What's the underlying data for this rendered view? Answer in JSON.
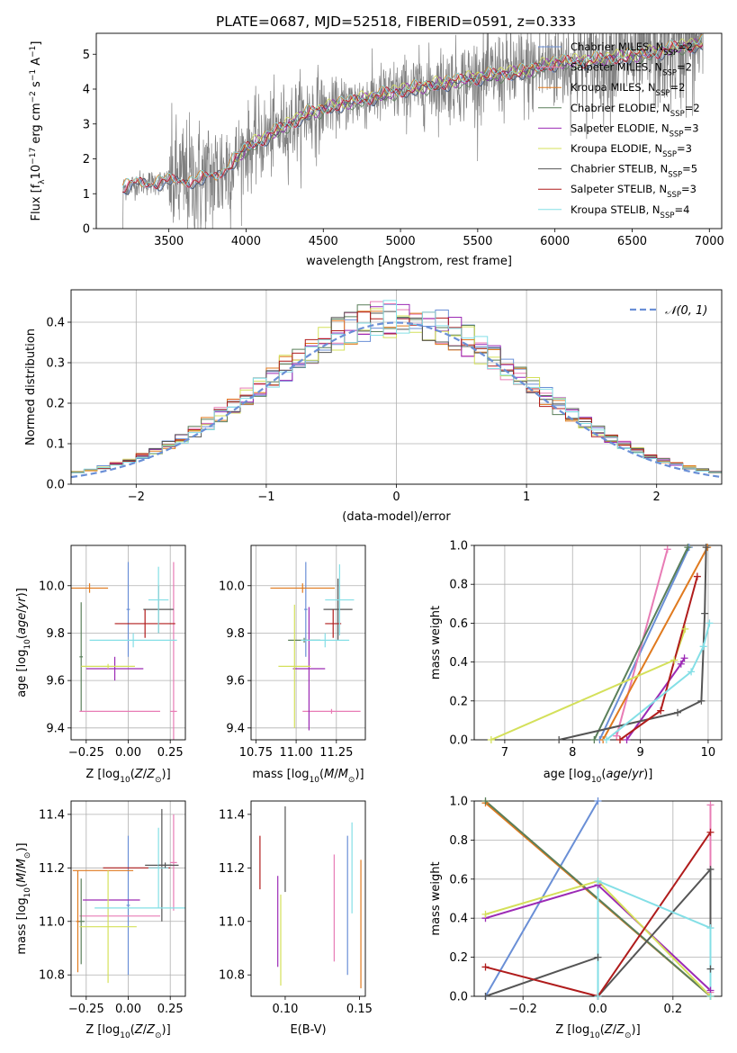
{
  "figure": {
    "title": "PLATE=0687, MJD=52518, FIBERID=0591, z=0.333"
  },
  "colors": {
    "Chabrier MILES": "#6a8fd6",
    "Salpeter MILES": "#e87cb5",
    "Kroupa MILES": "#e07a1f",
    "Chabrier ELODIE": "#5a7f5a",
    "Salpeter ELODIE": "#9c2ab5",
    "Kroupa ELODIE": "#d4e05a",
    "Chabrier STELIB": "#555555",
    "Salpeter STELIB": "#b01c1c",
    "Kroupa STELIB": "#84dfe6",
    "data": "#808080"
  },
  "chart_data": [
    {
      "id": "spectrum",
      "type": "line",
      "title": "PLATE=0687, MJD=52518, FIBERID=0591, z=0.333",
      "xlabel": "wavelength [Angstrom, rest frame]",
      "ylabel": "Flux [f",
      "ylabel_tail": "10",
      "ylabel_exp": "−17",
      "ylabel_units": " erg cm",
      "xlim": [
        3030,
        7080
      ],
      "ylim": [
        0,
        5.6
      ],
      "xticks": [
        3500,
        4000,
        4500,
        5000,
        5500,
        6000,
        6500,
        7000
      ],
      "yticks": [
        0,
        1,
        2,
        3,
        4,
        5
      ],
      "grid": false,
      "legend_position": "top-right",
      "legend": [
        {
          "base": "Chabrier MILES, N",
          "sub": "SSP",
          "tail": "=2"
        },
        {
          "base": "Salpeter MILES, N",
          "sub": "SSP",
          "tail": "=2"
        },
        {
          "base": "Kroupa MILES, N",
          "sub": "SSP",
          "tail": "=2"
        },
        {
          "base": "Chabrier ELODIE, N",
          "sub": "SSP",
          "tail": "=2"
        },
        {
          "base": "Salpeter ELODIE, N",
          "sub": "SSP",
          "tail": "=3"
        },
        {
          "base": "Kroupa ELODIE, N",
          "sub": "SSP",
          "tail": "=3"
        },
        {
          "base": "Chabrier STELIB, N",
          "sub": "SSP",
          "tail": "=5"
        },
        {
          "base": "Salpeter STELIB, N",
          "sub": "SSP",
          "tail": "=3"
        },
        {
          "base": "Kroupa STELIB, N",
          "sub": "SSP",
          "tail": "=4"
        }
      ],
      "model_continuum": {
        "x": [
          3200,
          3300,
          3500,
          3700,
          3800,
          3900,
          4000,
          4200,
          4400,
          4600,
          4800,
          5000,
          5200,
          5400,
          5600,
          5800,
          6000,
          6200,
          6400,
          6600,
          6800,
          6950
        ],
        "y": [
          1.15,
          1.3,
          1.35,
          1.4,
          1.5,
          1.85,
          2.3,
          2.8,
          3.3,
          3.55,
          3.75,
          3.95,
          4.1,
          4.25,
          4.4,
          4.5,
          4.75,
          4.8,
          4.9,
          5.0,
          5.2,
          5.3
        ]
      },
      "data_range": [
        3200,
        6960
      ]
    },
    {
      "id": "residuals",
      "type": "histogram",
      "xlabel": "(data-model)/error",
      "ylabel": "Normed distribution",
      "xlim": [
        -2.5,
        2.5
      ],
      "ylim": [
        0,
        0.48
      ],
      "xticks": [
        -2,
        -1,
        0,
        1,
        2
      ],
      "yticks": [
        0.0,
        0.1,
        0.2,
        0.3,
        0.4
      ],
      "grid": true,
      "legend_position": "top-right",
      "legend_label": "𝒩(0, 1)",
      "bin_width": 0.1
    },
    {
      "id": "age-vs-Z",
      "type": "errorbar",
      "xlabel": "Z [log",
      "ylabel": "age  [log",
      "xlim": [
        -0.34,
        0.34
      ],
      "ylim": [
        9.35,
        10.17
      ],
      "xticks": [
        -0.25,
        0.0,
        0.25
      ],
      "xtick_labels": [
        "−0.25",
        "0.00",
        "0.25"
      ],
      "yticks": [
        9.4,
        9.6,
        9.8,
        10.0
      ],
      "grid": true,
      "points": [
        {
          "series": "Chabrier MILES",
          "x": 0.0,
          "xerr": 0.01,
          "y": 9.9,
          "yerr": 0.2
        },
        {
          "series": "Salpeter MILES",
          "x": 0.27,
          "xerr": 0.02,
          "y": 9.47,
          "yerr": 0.63
        },
        {
          "series": "Kroupa MILES",
          "x": -0.23,
          "xerr": 0.11,
          "y": 9.99,
          "yerr": 0.02
        },
        {
          "series": "Chabrier ELODIE",
          "x": -0.28,
          "xerr": 0.01,
          "y": 9.7,
          "yerr": 0.23
        },
        {
          "series": "Salpeter ELODIE",
          "x": -0.08,
          "xerr": 0.17,
          "y": 9.65,
          "yerr": 0.05
        },
        {
          "series": "Kroupa ELODIE",
          "x": -0.12,
          "xerr": 0.16,
          "y": 9.66,
          "yerr": 0.01
        },
        {
          "series": "Chabrier STELIB",
          "x": 0.18,
          "xerr": 0.09,
          "y": 9.9,
          "yerr": 0.1
        },
        {
          "series": "Salpeter STELIB",
          "x": 0.1,
          "xerr": 0.18,
          "y": 9.84,
          "yerr": 0.06
        },
        {
          "series": "Kroupa STELIB",
          "x": 0.03,
          "xerr": 0.26,
          "y": 9.77,
          "yerr": 0.03
        },
        {
          "series": "Salpeter MILES",
          "x": -0.05,
          "xerr": 0.24,
          "y": 9.47,
          "yerr": 0.0
        },
        {
          "series": "Kroupa STELIB",
          "x": 0.18,
          "xerr": 0.06,
          "y": 9.94,
          "yerr": 0.14
        }
      ]
    },
    {
      "id": "age-vs-mass",
      "type": "errorbar",
      "xlabel": "mass [log",
      "xlim": [
        10.72,
        11.43
      ],
      "ylim": [
        9.35,
        10.17
      ],
      "xticks": [
        10.75,
        11.0,
        11.25
      ],
      "xtick_labels": [
        "10.75",
        "11.00",
        "11.25"
      ],
      "yticks": [
        9.4,
        9.6,
        9.8,
        10.0
      ],
      "grid": true,
      "points": [
        {
          "series": "Chabrier MILES",
          "x": 11.06,
          "xerr": 0.01,
          "y": 9.9,
          "yerr": 0.2
        },
        {
          "series": "Salpeter MILES",
          "x": 11.22,
          "xerr": 0.18,
          "y": 9.47,
          "yerr": 0.01
        },
        {
          "series": "Kroupa MILES",
          "x": 11.04,
          "xerr": 0.2,
          "y": 9.99,
          "yerr": 0.02
        },
        {
          "series": "Chabrier ELODIE",
          "x": 11.05,
          "xerr": 0.1,
          "y": 9.77,
          "yerr": 0.01
        },
        {
          "series": "Salpeter ELODIE",
          "x": 11.08,
          "xerr": 0.1,
          "y": 9.65,
          "yerr": 0.26
        },
        {
          "series": "Kroupa ELODIE",
          "x": 10.99,
          "xerr": 0.1,
          "y": 9.66,
          "yerr": 0.26
        },
        {
          "series": "Chabrier STELIB",
          "x": 11.26,
          "xerr": 0.09,
          "y": 9.9,
          "yerr": 0.13
        },
        {
          "series": "Salpeter STELIB",
          "x": 11.23,
          "xerr": 0.05,
          "y": 9.84,
          "yerr": 0.06
        },
        {
          "series": "Kroupa STELIB",
          "x": 11.18,
          "xerr": 0.15,
          "y": 9.77,
          "yerr": 0.03
        },
        {
          "series": "Kroupa STELIB",
          "x": 11.27,
          "xerr": 0.09,
          "y": 9.94,
          "yerr": 0.15
        }
      ]
    },
    {
      "id": "weight-vs-age",
      "type": "line",
      "xlabel": "age  [log",
      "ylabel": "mass weight",
      "xlim": [
        6.55,
        10.2
      ],
      "ylim": [
        0,
        1
      ],
      "xticks": [
        7,
        8,
        9,
        10
      ],
      "yticks": [
        0.0,
        0.2,
        0.4,
        0.6,
        0.8,
        1.0
      ],
      "grid": true,
      "series": [
        {
          "name": "Chabrier MILES",
          "x": [
            8.4,
            9.72
          ],
          "y": [
            0.0,
            0.99
          ]
        },
        {
          "name": "Salpeter MILES",
          "x": [
            8.65,
            9.4
          ],
          "y": [
            0.02,
            0.98
          ]
        },
        {
          "name": "Kroupa MILES",
          "x": [
            8.45,
            9.99
          ],
          "y": [
            0.0,
            0.99
          ]
        },
        {
          "name": "Chabrier ELODIE",
          "x": [
            8.32,
            9.7
          ],
          "y": [
            0.0,
            0.99
          ]
        },
        {
          "name": "Salpeter ELODIE",
          "x": [
            8.8,
            9.6,
            9.65
          ],
          "y": [
            0.0,
            0.39,
            0.42
          ]
        },
        {
          "name": "Kroupa ELODIE",
          "x": [
            6.8,
            9.5,
            9.66
          ],
          "y": [
            0.0,
            0.41,
            0.57
          ]
        },
        {
          "name": "Chabrier STELIB",
          "x": [
            7.8,
            9.55,
            9.9,
            9.95,
            9.97
          ],
          "y": [
            0.0,
            0.14,
            0.2,
            0.65,
            0.99
          ]
        },
        {
          "name": "Salpeter STELIB",
          "x": [
            8.7,
            9.3,
            9.84
          ],
          "y": [
            0.0,
            0.15,
            0.84
          ]
        },
        {
          "name": "Kroupa STELIB",
          "x": [
            8.5,
            9.75,
            9.93,
            10.02
          ],
          "y": [
            0.0,
            0.35,
            0.48,
            0.6
          ]
        }
      ]
    },
    {
      "id": "mass-vs-Z",
      "type": "errorbar",
      "xlabel": "Z [log",
      "ylabel": "mass [log",
      "xlim": [
        -0.34,
        0.34
      ],
      "ylim": [
        10.72,
        11.45
      ],
      "xticks": [
        -0.25,
        0.0,
        0.25
      ],
      "xtick_labels": [
        "−0.25",
        "0.00",
        "0.25"
      ],
      "yticks": [
        10.8,
        11.0,
        11.2,
        11.4
      ],
      "grid": true,
      "points": [
        {
          "series": "Chabrier MILES",
          "x": 0.0,
          "xerr": 0.01,
          "y": 11.06,
          "yerr": 0.26
        },
        {
          "series": "Salpeter MILES",
          "x": 0.27,
          "xerr": 0.02,
          "y": 11.22,
          "yerr": 0.18
        },
        {
          "series": "Salpeter MILES",
          "x": -0.05,
          "xerr": 0.24,
          "y": 11.02,
          "yerr": 0.0
        },
        {
          "series": "Kroupa MILES",
          "x": -0.15,
          "xerr": 0.18,
          "y": 11.19,
          "yerr": 0.0
        },
        {
          "series": "Chabrier ELODIE",
          "x": -0.28,
          "xerr": 0.02,
          "y": 11.0,
          "yerr": 0.16
        },
        {
          "series": "Salpeter ELODIE",
          "x": -0.1,
          "xerr": 0.17,
          "y": 11.08,
          "yerr": 0.0
        },
        {
          "series": "Kroupa ELODIE",
          "x": -0.12,
          "xerr": 0.17,
          "y": 10.98,
          "yerr": 0.21
        },
        {
          "series": "Chabrier STELIB",
          "x": 0.2,
          "xerr": 0.1,
          "y": 11.21,
          "yerr": 0.21
        },
        {
          "series": "Salpeter STELIB",
          "x": 0.05,
          "xerr": 0.2,
          "y": 11.2,
          "yerr": 0.0
        },
        {
          "series": "Kroupa STELIB",
          "x": 0.08,
          "xerr": 0.28,
          "y": 11.05,
          "yerr": 0.0
        },
        {
          "series": "Kroupa STELIB",
          "x": 0.18,
          "xerr": 0.06,
          "y": 11.2,
          "yerr": 0.15
        },
        {
          "series": "Kroupa MILES",
          "x": -0.3,
          "xerr": 0.01,
          "y": 11.0,
          "yerr": 0.19
        },
        {
          "series": "Chabrier STELIB",
          "x": 0.22,
          "xerr": 0.04,
          "y": 11.21,
          "yerr": 0.01
        }
      ]
    },
    {
      "id": "mass-vs-EBV",
      "type": "errorbar",
      "xlabel": "E(B-V)",
      "xlim": [
        0.077,
        0.154
      ],
      "ylim": [
        10.72,
        11.45
      ],
      "xticks": [
        0.1,
        0.15
      ],
      "xtick_labels": [
        "0.10",
        "0.15"
      ],
      "yticks": [
        10.8,
        11.0,
        11.2,
        11.4
      ],
      "grid": false,
      "points": [
        {
          "series": "Salpeter STELIB",
          "x": 0.083,
          "y": 11.22,
          "yerr": 0.1
        },
        {
          "series": "Salpeter ELODIE",
          "x": 0.095,
          "y": 11.0,
          "yerr": 0.17
        },
        {
          "series": "Kroupa ELODIE",
          "x": 0.097,
          "y": 10.93,
          "yerr": 0.17
        },
        {
          "series": "Chabrier STELIB",
          "x": 0.1,
          "y": 11.27,
          "yerr": 0.16
        },
        {
          "series": "Salpeter MILES",
          "x": 0.133,
          "y": 11.05,
          "yerr": 0.2
        },
        {
          "series": "Chabrier MILES",
          "x": 0.142,
          "y": 11.06,
          "yerr": 0.26
        },
        {
          "series": "Kroupa STELIB",
          "x": 0.145,
          "y": 11.2,
          "yerr": 0.17
        },
        {
          "series": "Kroupa MILES",
          "x": 0.151,
          "y": 10.99,
          "yerr": 0.24
        }
      ]
    },
    {
      "id": "weight-vs-Z",
      "type": "line",
      "xlabel": "Z [log",
      "ylabel": "mass weight",
      "xlim": [
        -0.33,
        0.33
      ],
      "ylim": [
        0,
        1
      ],
      "xticks": [
        -0.2,
        0.0,
        0.2
      ],
      "xtick_labels": [
        "−0.2",
        "0.0",
        "0.2"
      ],
      "yticks": [
        0.0,
        0.2,
        0.4,
        0.6,
        0.8,
        1.0
      ],
      "grid": true,
      "series": [
        {
          "name": "Chabrier MILES",
          "x": [
            -0.3,
            0.0
          ],
          "y": [
            0.0,
            1.0
          ]
        },
        {
          "name": "Salpeter MILES",
          "x": [
            0.3,
            0.3
          ],
          "y": [
            0.02,
            0.98
          ]
        },
        {
          "name": "Kroupa MILES",
          "x": [
            -0.3,
            0.3
          ],
          "y": [
            0.99,
            0.0
          ]
        },
        {
          "name": "Chabrier ELODIE",
          "x": [
            -0.3,
            0.3
          ],
          "y": [
            1.0,
            0.0
          ]
        },
        {
          "name": "Salpeter ELODIE",
          "x": [
            -0.3,
            0.0,
            0.3
          ],
          "y": [
            0.4,
            0.57,
            0.03
          ]
        },
        {
          "name": "Kroupa ELODIE",
          "x": [
            -0.3,
            0.0,
            0.3
          ],
          "y": [
            0.42,
            0.59,
            0.0
          ]
        },
        {
          "name": "Chabrier STELIB",
          "x": [
            -0.3,
            0.0,
            0.0,
            0.3,
            0.3
          ],
          "y": [
            0.0,
            0.2,
            0.0,
            0.65,
            0.14
          ]
        },
        {
          "name": "Salpeter STELIB",
          "x": [
            -0.3,
            0.0,
            0.3
          ],
          "y": [
            0.15,
            0.0,
            0.84
          ]
        },
        {
          "name": "Kroupa STELIB",
          "x": [
            0.0,
            0.0,
            0.3,
            0.3
          ],
          "y": [
            0.0,
            0.59,
            0.35,
            0.0
          ]
        }
      ]
    }
  ]
}
